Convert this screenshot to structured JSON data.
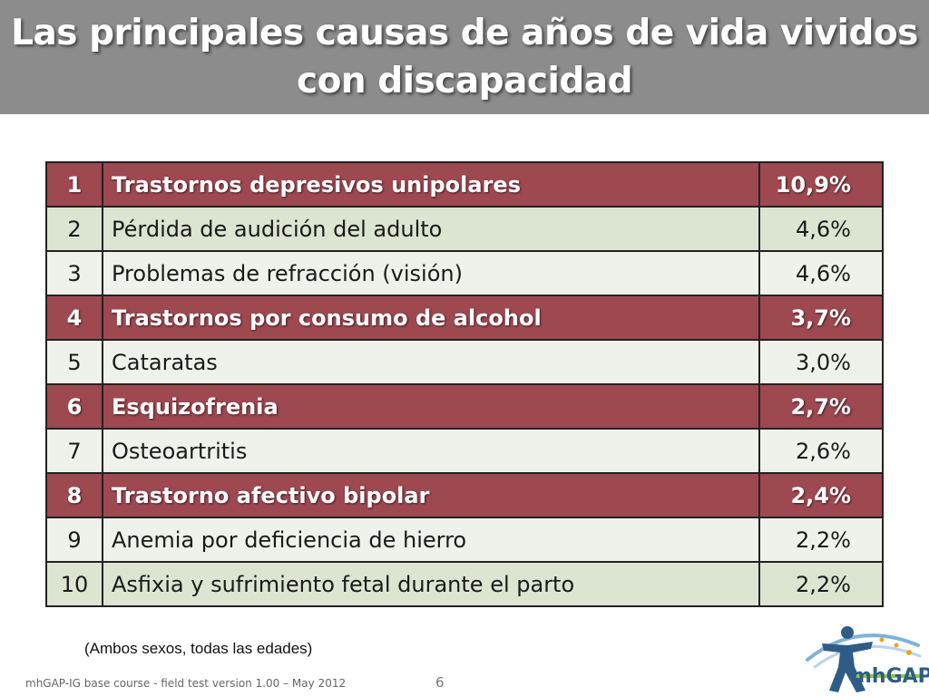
{
  "slide": {
    "title_line1": "Las principales causas de años de vida vividos",
    "title_line2": "con discapacidad",
    "note": "(Ambos sexos, todas las edades)",
    "footer": "mhGAP-IG base course -  field test version 1.00 – May 2012",
    "page_number": "6",
    "logo_text": "mhGAP"
  },
  "table": {
    "rows": [
      {
        "rank": "1",
        "cause": "Trastornos depresivos unipolares",
        "value": "10,9%",
        "highlight": true
      },
      {
        "rank": "2",
        "cause": "Pérdida de audición del adulto",
        "value": "4,6%",
        "highlight": false
      },
      {
        "rank": "3",
        "cause": "Problemas de refracción (visión)",
        "value": "4,6%",
        "highlight": false
      },
      {
        "rank": "4",
        "cause": "Trastornos por consumo de alcohol",
        "value": "3,7%",
        "highlight": true
      },
      {
        "rank": "5",
        "cause": "Cataratas",
        "value": "3,0%",
        "highlight": false
      },
      {
        "rank": "6",
        "cause": "Esquizofrenia",
        "value": "2,7%",
        "highlight": true
      },
      {
        "rank": "7",
        "cause": "Osteoartritis",
        "value": "2,6%",
        "highlight": false
      },
      {
        "rank": "8",
        "cause": "Trastorno afectivo bipolar",
        "value": "2,4%",
        "highlight": true
      },
      {
        "rank": "9",
        "cause": "Anemia por deficiencia de hierro",
        "value": "2,2%",
        "highlight": false
      },
      {
        "rank": "10",
        "cause": "Asfixia y sufrimiento fetal durante el parto",
        "value": "2,2%",
        "highlight": false
      }
    ]
  },
  "colors": {
    "title_bar": "#8c8c8c",
    "highlight_row": "#9e4850",
    "plain_row": "#dbe5d1",
    "alt_row": "#eef2ea",
    "logo_blue": "#2e5c86"
  }
}
